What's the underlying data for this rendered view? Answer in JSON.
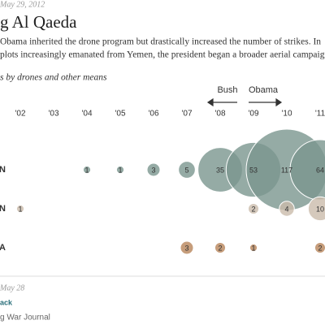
{
  "chart_data": {
    "type": "bubble",
    "date": "May 29, 2012",
    "title": "g Al Qaeda",
    "text": [
      "Obama inherited the drone program but drastically increased the number of strikes. In",
      "plots increasingly emanated from Yemen, the president began a broader aerial campaign"
    ],
    "subtitle": "s by drones and other means",
    "annotations": [
      "Bush",
      "Obama"
    ],
    "footer": [
      "May 28",
      "ack",
      "g War Journal"
    ],
    "categories": [
      "'02",
      "'03",
      "'04",
      "'05",
      "'06",
      "'07",
      "'08",
      "'09",
      "'10",
      "'11"
    ],
    "series": [
      {
        "name": "N",
        "color": "#7a968f",
        "values": [
          null,
          null,
          1,
          1,
          3,
          5,
          35,
          53,
          117,
          64
        ]
      },
      {
        "name": "N",
        "color": "#cbbcab",
        "values": [
          1,
          null,
          null,
          null,
          null,
          null,
          null,
          2,
          4,
          10
        ]
      },
      {
        "name": "A",
        "color": "#b8845a",
        "values": [
          null,
          null,
          null,
          null,
          null,
          3,
          2,
          1,
          null,
          2
        ]
      }
    ]
  }
}
